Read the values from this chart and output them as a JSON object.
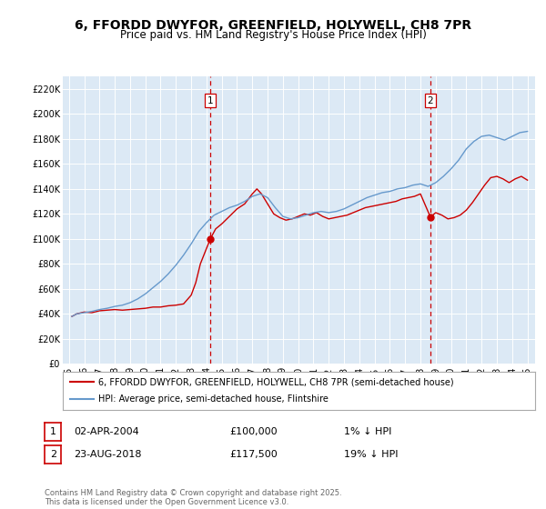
{
  "title": "6, FFORDD DWYFOR, GREENFIELD, HOLYWELL, CH8 7PR",
  "subtitle": "Price paid vs. HM Land Registry's House Price Index (HPI)",
  "title_fontsize": 10,
  "subtitle_fontsize": 8.5,
  "background_color": "#ffffff",
  "plot_bg_color": "#dce9f5",
  "grid_color": "#ffffff",
  "ylim": [
    0,
    230000
  ],
  "yticks": [
    0,
    20000,
    40000,
    60000,
    80000,
    100000,
    120000,
    140000,
    160000,
    180000,
    200000,
    220000
  ],
  "ytick_labels": [
    "£0",
    "£20K",
    "£40K",
    "£60K",
    "£80K",
    "£100K",
    "£120K",
    "£140K",
    "£160K",
    "£180K",
    "£200K",
    "£220K"
  ],
  "xlim_start": 1994.6,
  "xlim_end": 2025.5,
  "xticks": [
    1995,
    1996,
    1997,
    1998,
    1999,
    2000,
    2001,
    2002,
    2003,
    2004,
    2005,
    2006,
    2007,
    2008,
    2009,
    2010,
    2011,
    2012,
    2013,
    2014,
    2015,
    2016,
    2017,
    2018,
    2019,
    2020,
    2021,
    2022,
    2023,
    2024,
    2025
  ],
  "xtick_labels": [
    "95",
    "96",
    "97",
    "98",
    "99",
    "00",
    "01",
    "02",
    "03",
    "04",
    "05",
    "06",
    "07",
    "08",
    "09",
    "10",
    "11",
    "12",
    "13",
    "14",
    "15",
    "16",
    "17",
    "18",
    "19",
    "20",
    "21",
    "22",
    "23",
    "24",
    "25"
  ],
  "red_line_color": "#cc0000",
  "blue_line_color": "#6699cc",
  "vline_color": "#cc0000",
  "marker1_x": 2004.25,
  "marker1_y": 100000,
  "marker2_x": 2018.65,
  "marker2_y": 117500,
  "legend_label_red": "6, FFORDD DWYFOR, GREENFIELD, HOLYWELL, CH8 7PR (semi-detached house)",
  "legend_label_blue": "HPI: Average price, semi-detached house, Flintshire",
  "annotation1_date": "02-APR-2004",
  "annotation1_price": "£100,000",
  "annotation1_hpi": "1% ↓ HPI",
  "annotation2_date": "23-AUG-2018",
  "annotation2_price": "£117,500",
  "annotation2_hpi": "19% ↓ HPI",
  "footer": "Contains HM Land Registry data © Crown copyright and database right 2025.\nThis data is licensed under the Open Government Licence v3.0.",
  "red_x": [
    1995.2,
    1995.5,
    1996.0,
    1996.5,
    1997.0,
    1997.5,
    1998.0,
    1998.5,
    1999.0,
    1999.5,
    2000.0,
    2000.5,
    2001.0,
    2001.5,
    2002.0,
    2002.5,
    2003.0,
    2003.3,
    2003.6,
    2004.25,
    2004.6,
    2005.0,
    2005.5,
    2006.0,
    2006.5,
    2007.0,
    2007.3,
    2007.6,
    2008.0,
    2008.4,
    2008.8,
    2009.2,
    2009.6,
    2010.0,
    2010.4,
    2010.8,
    2011.2,
    2011.6,
    2012.0,
    2012.4,
    2012.8,
    2013.2,
    2013.6,
    2014.0,
    2014.4,
    2014.8,
    2015.2,
    2015.6,
    2016.0,
    2016.4,
    2016.8,
    2017.2,
    2017.6,
    2018.0,
    2018.65,
    2019.0,
    2019.4,
    2019.8,
    2020.2,
    2020.6,
    2021.0,
    2021.4,
    2021.8,
    2022.2,
    2022.6,
    2023.0,
    2023.4,
    2023.8,
    2024.2,
    2024.6,
    2025.0
  ],
  "red_y": [
    38000,
    40000,
    41500,
    41000,
    42500,
    43000,
    43500,
    43000,
    43500,
    44000,
    44500,
    45500,
    45500,
    46500,
    47000,
    48000,
    55000,
    65000,
    80000,
    100000,
    108000,
    112000,
    118000,
    124000,
    128000,
    136000,
    140000,
    136000,
    128000,
    120000,
    117000,
    115000,
    116000,
    118000,
    120000,
    119000,
    121000,
    118000,
    116000,
    117000,
    118000,
    119000,
    121000,
    123000,
    125000,
    126000,
    127000,
    128000,
    129000,
    130000,
    132000,
    133000,
    134000,
    136000,
    117500,
    121000,
    119000,
    116000,
    117000,
    119000,
    123000,
    129000,
    136000,
    143000,
    149000,
    150000,
    148000,
    145000,
    148000,
    150000,
    147000
  ],
  "blue_x": [
    1995.2,
    1995.5,
    1996.0,
    1996.5,
    1997.0,
    1997.5,
    1998.0,
    1998.5,
    1999.0,
    1999.5,
    2000.0,
    2000.5,
    2001.0,
    2001.5,
    2002.0,
    2002.5,
    2003.0,
    2003.5,
    2004.0,
    2004.5,
    2005.0,
    2005.5,
    2006.0,
    2006.5,
    2007.0,
    2007.5,
    2008.0,
    2008.5,
    2009.0,
    2009.5,
    2010.0,
    2010.5,
    2011.0,
    2011.5,
    2012.0,
    2012.5,
    2013.0,
    2013.5,
    2014.0,
    2014.5,
    2015.0,
    2015.5,
    2016.0,
    2016.5,
    2017.0,
    2017.5,
    2018.0,
    2018.5,
    2019.0,
    2019.5,
    2020.0,
    2020.5,
    2021.0,
    2021.5,
    2022.0,
    2022.5,
    2023.0,
    2023.5,
    2024.0,
    2024.5,
    2025.0
  ],
  "blue_y": [
    38000,
    40000,
    41000,
    42000,
    43500,
    44500,
    46000,
    47000,
    49000,
    52000,
    56000,
    61000,
    66000,
    72000,
    79000,
    87000,
    96000,
    106000,
    113000,
    119000,
    122000,
    125000,
    127000,
    130000,
    134000,
    136000,
    133000,
    125000,
    118000,
    116000,
    117000,
    119000,
    121000,
    122000,
    121000,
    122000,
    124000,
    127000,
    130000,
    133000,
    135000,
    137000,
    138000,
    140000,
    141000,
    143000,
    144000,
    142000,
    145000,
    150000,
    156000,
    163000,
    172000,
    178000,
    182000,
    183000,
    181000,
    179000,
    182000,
    185000,
    186000
  ]
}
